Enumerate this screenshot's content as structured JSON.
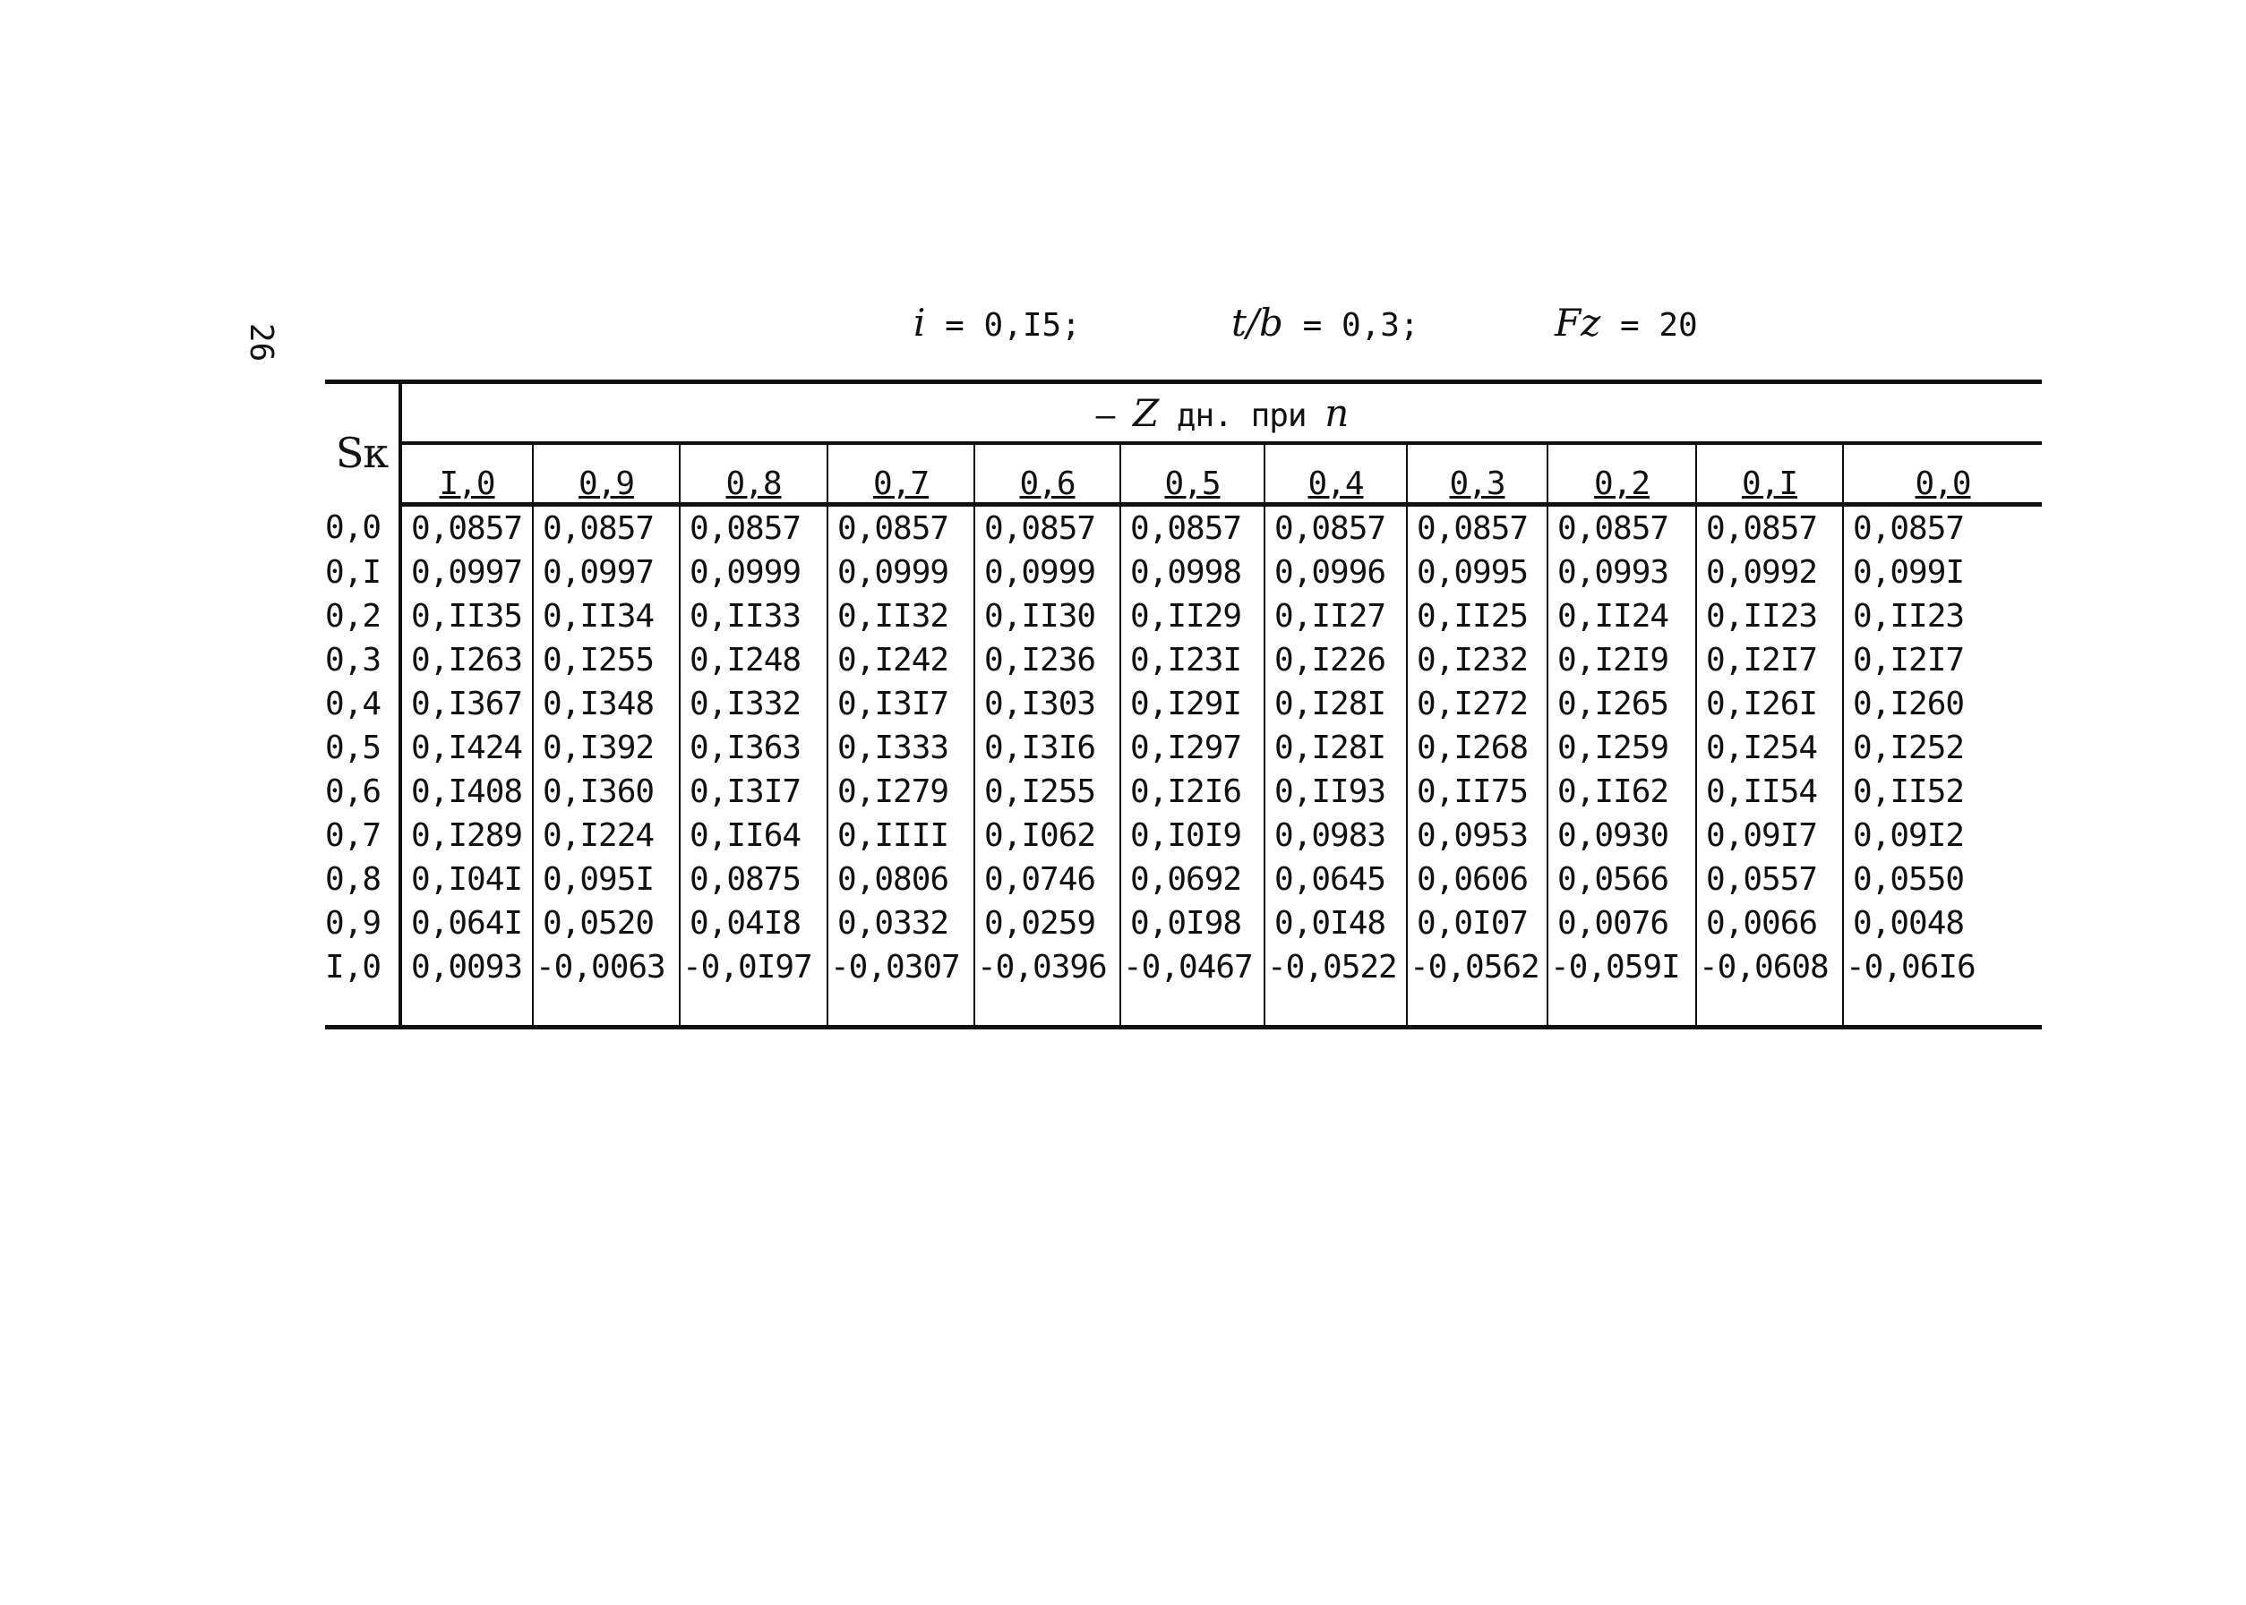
{
  "page_number": "26",
  "params": {
    "i_symbol": "i",
    "i_value": "= 0,I5;",
    "tb_symbol": "t/b",
    "tb_value": "= 0,3;",
    "fz_symbol": "Fz",
    "fz_value": "= 20"
  },
  "table": {
    "row_header": "Sк",
    "group_header_prefix": "– ",
    "group_header_symbol": "Z",
    "group_header_text": " дн. при ",
    "group_header_var": "n",
    "columns": [
      "I,0",
      "0,9",
      "0,8",
      "0,7",
      "0,6",
      "0,5",
      "0,4",
      "0,3",
      "0,2",
      "0,I",
      "0,0"
    ],
    "rows": [
      {
        "sk": "0,0",
        "values": [
          "0,0857",
          "0,0857",
          "0,0857",
          "0,0857",
          "0,0857",
          "0,0857",
          "0,0857",
          "0,0857",
          "0,0857",
          "0,0857",
          "0,0857"
        ]
      },
      {
        "sk": "0,I",
        "values": [
          "0,0997",
          "0,0997",
          "0,0999",
          "0,0999",
          "0,0999",
          "0,0998",
          "0,0996",
          "0,0995",
          "0,0993",
          "0,0992",
          "0,099I"
        ]
      },
      {
        "sk": "0,2",
        "values": [
          "0,II35",
          "0,II34",
          "0,II33",
          "0,II32",
          "0,II30",
          "0,II29",
          "0,II27",
          "0,II25",
          "0,II24",
          "0,II23",
          "0,II23"
        ]
      },
      {
        "sk": "0,3",
        "values": [
          "0,I263",
          "0,I255",
          "0,I248",
          "0,I242",
          "0,I236",
          "0,I23I",
          "0,I226",
          "0,I232",
          "0,I2I9",
          "0,I2I7",
          "0,I2I7"
        ]
      },
      {
        "sk": "0,4",
        "values": [
          "0,I367",
          "0,I348",
          "0,I332",
          "0,I3I7",
          "0,I303",
          "0,I29I",
          "0,I28I",
          "0,I272",
          "0,I265",
          "0,I26I",
          "0,I260"
        ]
      },
      {
        "sk": "0,5",
        "values": [
          "0,I424",
          "0,I392",
          "0,I363",
          "0,I333",
          "0,I3I6",
          "0,I297",
          "0,I28I",
          "0,I268",
          "0,I259",
          "0,I254",
          "0,I252"
        ]
      },
      {
        "sk": "0,6",
        "values": [
          "0,I408",
          "0,I360",
          "0,I3I7",
          "0,I279",
          "0,I255",
          "0,I2I6",
          "0,II93",
          "0,II75",
          "0,II62",
          "0,II54",
          "0,II52"
        ]
      },
      {
        "sk": "0,7",
        "values": [
          "0,I289",
          "0,I224",
          "0,II64",
          "0,IIII",
          "0,I062",
          "0,I0I9",
          "0,0983",
          "0,0953",
          "0,0930",
          "0,09I7",
          "0,09I2"
        ]
      },
      {
        "sk": "0,8",
        "values": [
          "0,I04I",
          "0,095I",
          "0,0875",
          "0,0806",
          "0,0746",
          "0,0692",
          "0,0645",
          "0,0606",
          "0,0566",
          "0,0557",
          "0,0550"
        ]
      },
      {
        "sk": "0,9",
        "values": [
          "0,064I",
          "0,0520",
          "0,04I8",
          "0,0332",
          "0,0259",
          "0,0I98",
          "0,0I48",
          "0,0I07",
          "0,0076",
          "0,0066",
          "0,0048"
        ]
      },
      {
        "sk": "I,0",
        "values": [
          "0,0093",
          "-0,0063",
          "-0,0I97",
          "-0,0307",
          "-0,0396",
          "-0,0467",
          "-0,0522",
          "-0,0562",
          "-0,059I",
          "-0,0608",
          "-0,06I6"
        ]
      }
    ]
  }
}
